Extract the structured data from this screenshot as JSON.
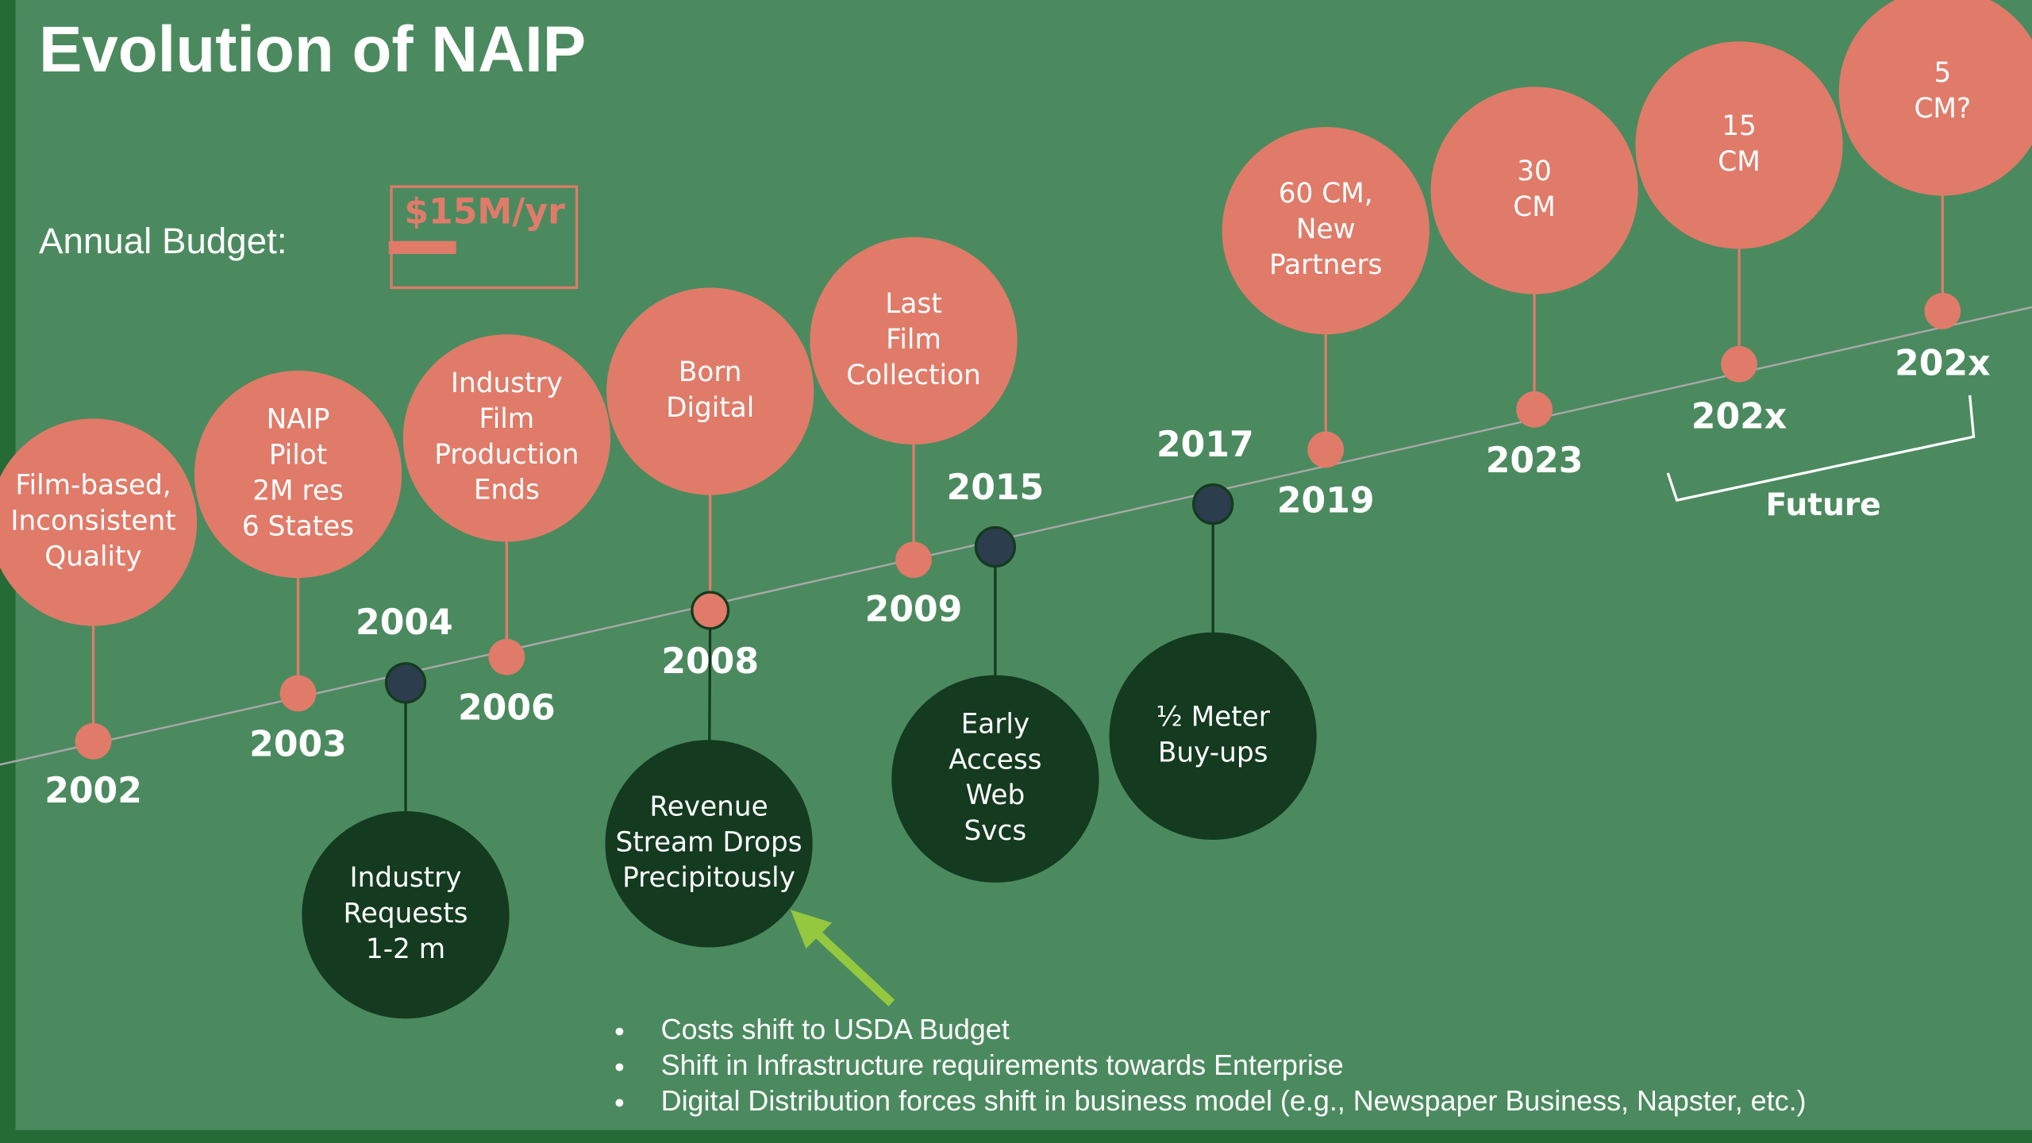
{
  "title": "Evolution of NAIP",
  "budget": {
    "label": "Annual Budget:",
    "value": "$15M/yr"
  },
  "events": [
    {
      "year": "2002",
      "lines": [
        "Film-based,",
        "Inconsistent",
        "Quality"
      ],
      "color": "#e07b69"
    },
    {
      "year": "2003",
      "lines": [
        "NAIP",
        "Pilot",
        "2M res",
        "6 States"
      ],
      "color": "#e07b69"
    },
    {
      "year": "2004",
      "lines": [
        "Industry",
        "Requests",
        "1-2 m"
      ],
      "color": "#143a1f"
    },
    {
      "year": "2006",
      "lines": [
        "Industry",
        "Film",
        "Production",
        "Ends"
      ],
      "color": "#e07b69"
    },
    {
      "year": "2008",
      "lines": [
        "Born",
        "Digital"
      ],
      "color": "#e07b69"
    },
    {
      "year": "2009",
      "lines": [
        "Last",
        "Film",
        "Collection"
      ],
      "color": "#e07b69"
    },
    {
      "year": "2015",
      "lines": [
        "Early",
        "Access",
        "Web",
        "Svcs"
      ],
      "color": "#143a1f"
    },
    {
      "year": "2017",
      "lines": [
        "½ Meter",
        "Buy-ups"
      ],
      "color": "#143a1f"
    },
    {
      "year": "2019",
      "lines": [
        "60 CM,",
        "New",
        "Partners"
      ],
      "color": "#e07b69"
    },
    {
      "year": "2023",
      "lines": [
        "30",
        "CM"
      ],
      "color": "#e07b69"
    },
    {
      "year": "202x",
      "lines": [
        "15",
        "CM"
      ],
      "color": "#e07b69"
    },
    {
      "year": "202x",
      "lines": [
        "5",
        "CM?"
      ],
      "color": "#e07b69"
    }
  ],
  "callout": {
    "lines": [
      "Revenue",
      "Stream Drops",
      "Precipitously"
    ],
    "color": "#143a1f"
  },
  "future": "Future",
  "bullets": [
    "Costs shift to USDA Budget",
    "Shift in Infrastructure requirements towards Enterprise",
    "Digital Distribution forces shift in business model (e.g., Newspaper Business,  Napster, etc.)"
  ]
}
